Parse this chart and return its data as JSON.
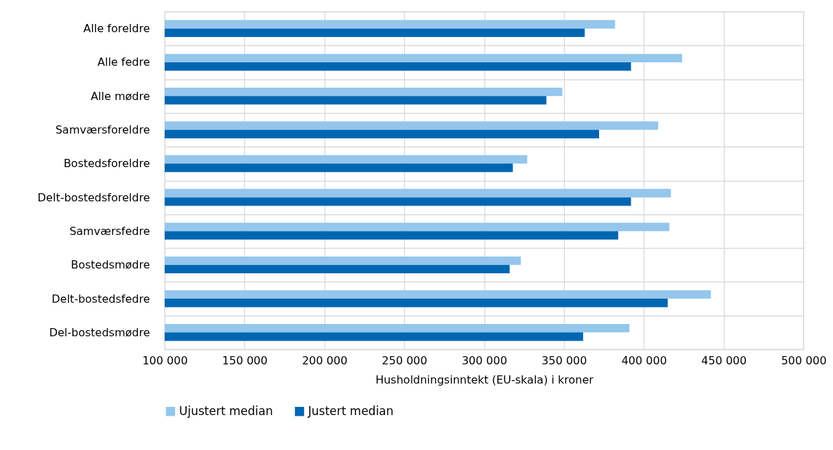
{
  "chart_data": {
    "type": "bar",
    "orientation": "horizontal",
    "xlabel": "Husholdningsinntekt (EU-skala) i kroner",
    "categories": [
      "Alle foreldre",
      "Alle fedre",
      "Alle mødre",
      "Samværsforeldre",
      "Bostedsforeldre",
      "Delt-bostedsforeldre",
      "Samværsfedre",
      "Bostedsmødre",
      "Delt-bostedsfedre",
      "Del-bostedsmødre"
    ],
    "series": [
      {
        "name": "Ujustert median",
        "color": "#95c6ec",
        "values": [
          382000,
          424000,
          349000,
          409000,
          327000,
          417000,
          416000,
          323000,
          442000,
          391000
        ]
      },
      {
        "name": "Justert median",
        "color": "#0066b2",
        "values": [
          363000,
          392000,
          339000,
          372000,
          318000,
          392000,
          384000,
          316000,
          415000,
          362000
        ]
      }
    ],
    "xlim": [
      100000,
      500000
    ],
    "xticks": [
      {
        "value": 100000,
        "label": "100 000"
      },
      {
        "value": 150000,
        "label": "150 000"
      },
      {
        "value": 200000,
        "label": "200 000"
      },
      {
        "value": 250000,
        "label": "250 000"
      },
      {
        "value": 300000,
        "label": "300 000"
      },
      {
        "value": 350000,
        "label": "350 000"
      },
      {
        "value": 400000,
        "label": "400 000"
      },
      {
        "value": 450000,
        "label": "450 000"
      },
      {
        "value": 500000,
        "label": "500 000"
      }
    ],
    "grid": true,
    "legend": "bottom"
  }
}
